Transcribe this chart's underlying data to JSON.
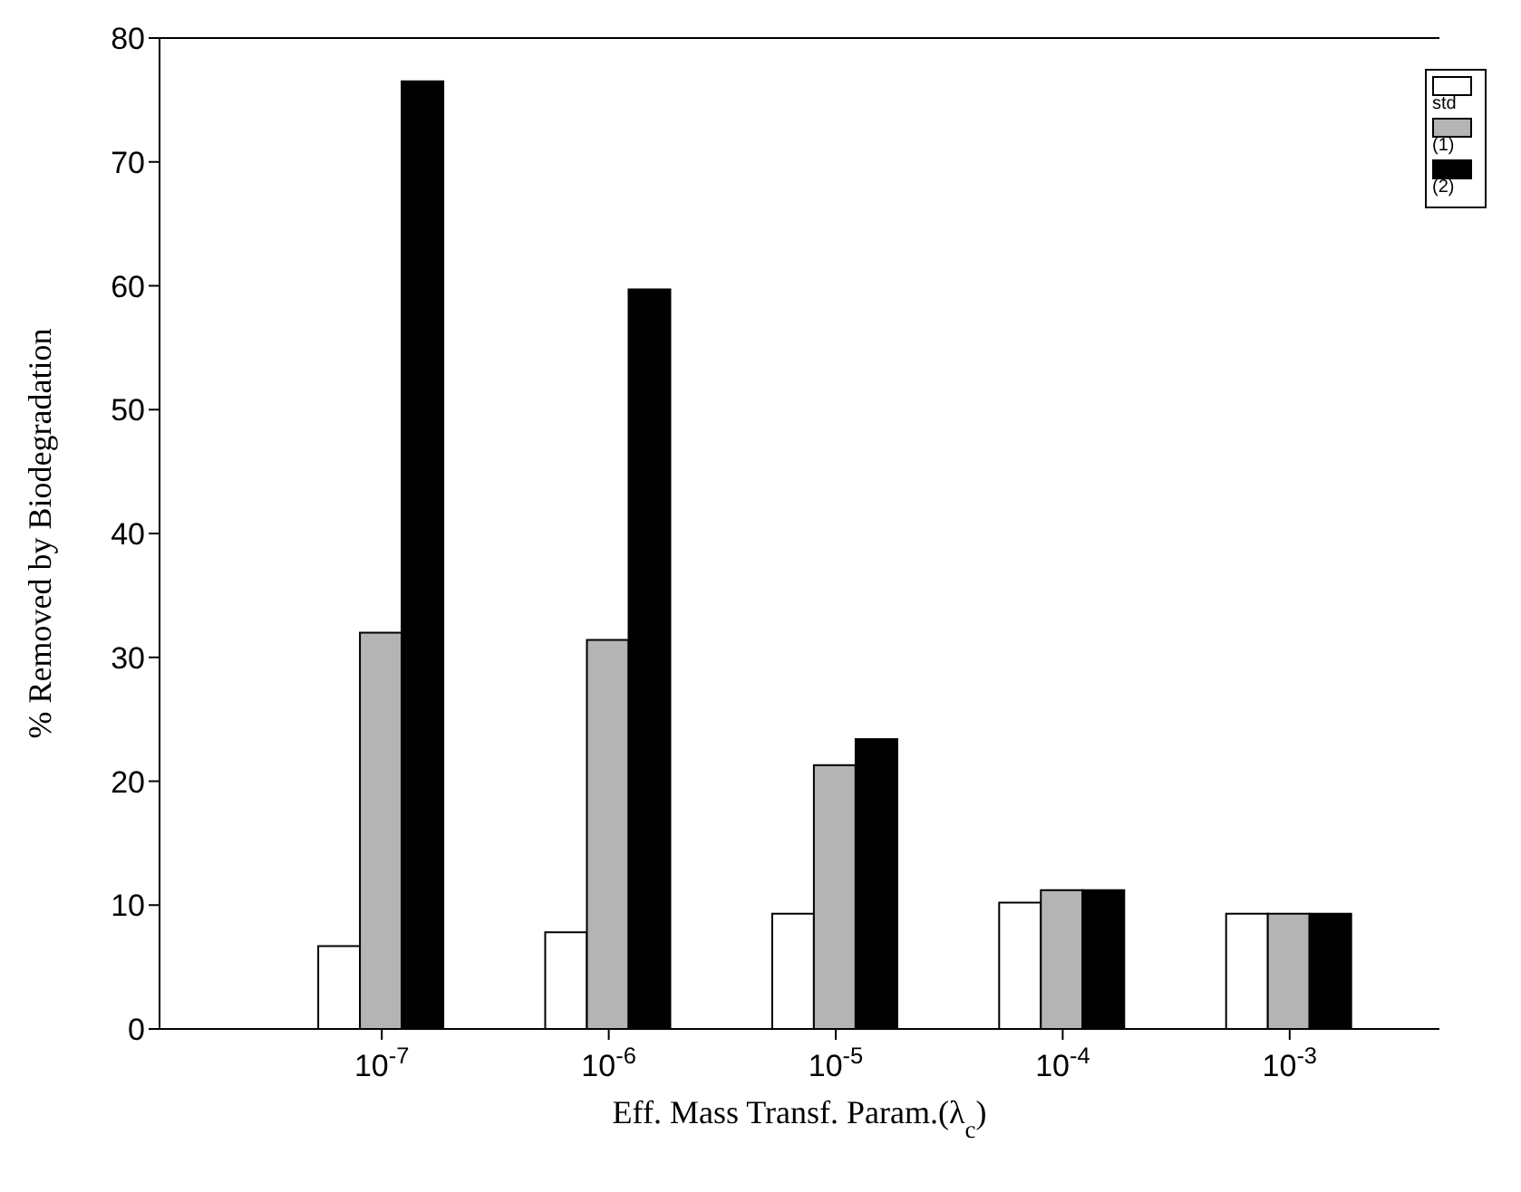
{
  "chart_data": {
    "type": "bar",
    "xlabel": "Eff. Mass Transf. Param.(λ$_{c}$)",
    "ylabel": "% Removed by Biodegradation",
    "categories": [
      "10$^{-7}$",
      "10$^{-6}$",
      "10$^{-5}$",
      "10$^{-4}$",
      "10$^{-3}$"
    ],
    "series": [
      {
        "name": "std",
        "color": "#ffffff",
        "values": [
          6.7,
          7.8,
          9.3,
          10.2,
          9.3
        ]
      },
      {
        "name": "(1)",
        "color": "#b4b4b4",
        "values": [
          32,
          31.4,
          21.3,
          11.2,
          9.3
        ]
      },
      {
        "name": "(2)",
        "color": "#000000",
        "values": [
          76.5,
          59.7,
          23.4,
          11.2,
          9.3
        ]
      }
    ],
    "ylim": [
      0,
      80
    ],
    "yticks": [
      0,
      10,
      20,
      30,
      40,
      50,
      60,
      70,
      80
    ],
    "legend": "top right"
  }
}
